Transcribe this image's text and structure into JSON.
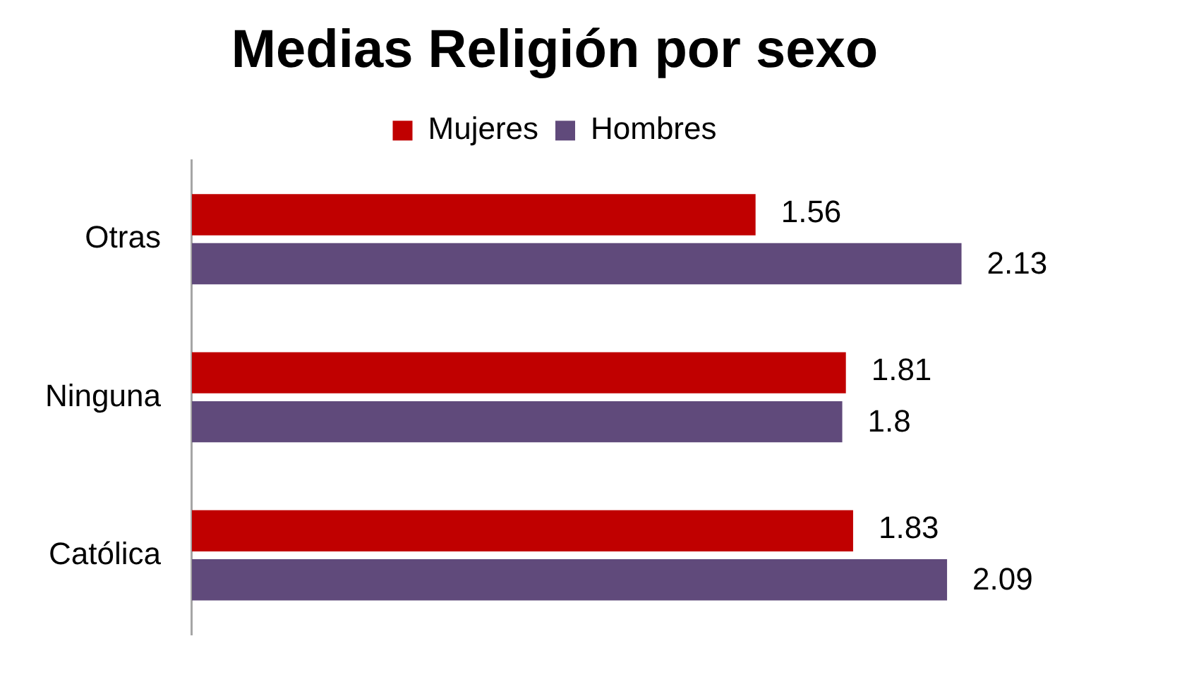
{
  "chart_data": {
    "type": "bar",
    "orientation": "horizontal",
    "title": "Medias Religión por sexo",
    "categories": [
      "Otras",
      "Ninguna",
      "Católica"
    ],
    "series": [
      {
        "name": "Mujeres",
        "color": "#c00000",
        "values": [
          1.56,
          1.81,
          1.83
        ]
      },
      {
        "name": "Hombres",
        "color": "#604a7b",
        "values": [
          2.13,
          1.8,
          2.09
        ]
      }
    ],
    "data_labels": true,
    "legend": "top"
  }
}
